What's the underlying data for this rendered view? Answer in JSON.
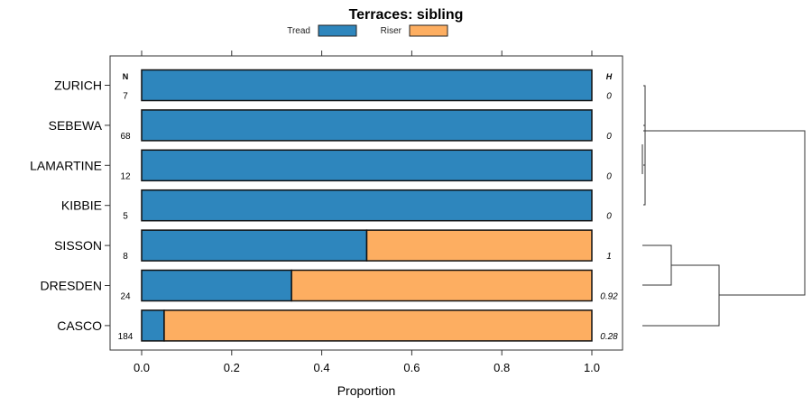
{
  "chart_data": {
    "type": "bar",
    "orientation": "horizontal",
    "stacked": true,
    "title": "Terraces: sibling",
    "xlabel": "Proportion",
    "ylabel": "",
    "xlim": [
      0,
      1
    ],
    "xticks": [
      "0.0",
      "0.2",
      "0.4",
      "0.6",
      "0.8",
      "1.0"
    ],
    "categories": [
      "ZURICH",
      "SEBEWA",
      "LAMARTINE",
      "KIBBIE",
      "SISSON",
      "DRESDEN",
      "CASCO"
    ],
    "n_header": "N",
    "h_header": "H",
    "n": [
      "7",
      "68",
      "12",
      "5",
      "8",
      "24",
      "184"
    ],
    "h": [
      "0",
      "0",
      "0",
      "0",
      "1",
      "0.92",
      "0.28"
    ],
    "series": [
      {
        "name": "Tread",
        "color": "#2e86bd",
        "values": [
          1,
          1,
          1,
          1,
          0.5,
          0.333,
          0.05
        ]
      },
      {
        "name": "Riser",
        "color": "#fdae61",
        "values": [
          0,
          0,
          0,
          0,
          0.5,
          0.667,
          0.95
        ]
      }
    ],
    "legend": "top-center"
  }
}
